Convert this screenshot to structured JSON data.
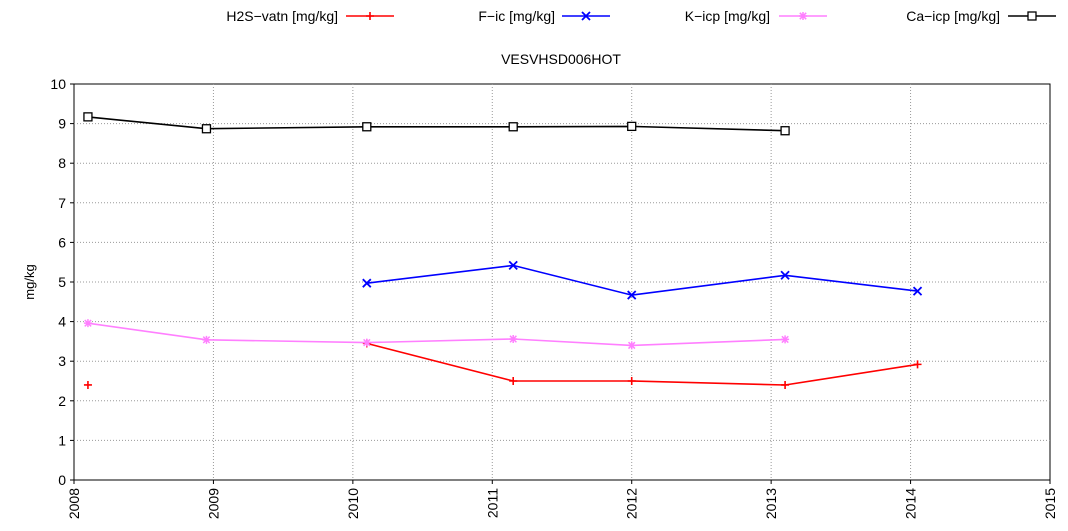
{
  "chart_data": {
    "type": "line",
    "title": "VESVHSD006HOT",
    "xlabel": "",
    "ylabel": "mg/kg",
    "xlim": [
      2008,
      2015
    ],
    "ylim": [
      0,
      10
    ],
    "x_ticks": [
      "2008",
      "2009",
      "2010",
      "2011",
      "2012",
      "2013",
      "2014",
      "2015"
    ],
    "y_ticks": [
      "0",
      "1",
      "2",
      "3",
      "4",
      "5",
      "6",
      "7",
      "8",
      "9",
      "10"
    ],
    "grid": true,
    "legend_position": "top",
    "series": [
      {
        "name": "H2S−vatn [mg/kg]",
        "color": "#ff0000",
        "marker": "plus",
        "segments": [
          [
            [
              2008.1,
              2.4
            ]
          ],
          [
            [
              2010.1,
              3.45
            ],
            [
              2011.15,
              2.5
            ],
            [
              2012.0,
              2.5
            ],
            [
              2013.1,
              2.4
            ],
            [
              2014.05,
              2.92
            ]
          ]
        ]
      },
      {
        "name": "F−ic [mg/kg]",
        "color": "#0000ff",
        "marker": "x",
        "segments": [
          [
            [
              2010.1,
              4.97
            ],
            [
              2011.15,
              5.42
            ],
            [
              2012.0,
              4.67
            ],
            [
              2013.1,
              5.17
            ],
            [
              2014.05,
              4.77
            ]
          ]
        ]
      },
      {
        "name": "K−icp [mg/kg]",
        "color": "#ff7fff",
        "marker": "star",
        "segments": [
          [
            [
              2008.1,
              3.96
            ],
            [
              2008.95,
              3.54
            ],
            [
              2010.1,
              3.47
            ],
            [
              2011.15,
              3.56
            ],
            [
              2012.0,
              3.4
            ],
            [
              2013.1,
              3.55
            ]
          ]
        ]
      },
      {
        "name": "Ca−icp [mg/kg]",
        "color": "#000000",
        "marker": "square",
        "segments": [
          [
            [
              2008.1,
              9.17
            ],
            [
              2008.95,
              8.87
            ],
            [
              2010.1,
              8.92
            ],
            [
              2011.15,
              8.92
            ],
            [
              2012.0,
              8.93
            ],
            [
              2013.1,
              8.82
            ]
          ]
        ]
      }
    ]
  }
}
